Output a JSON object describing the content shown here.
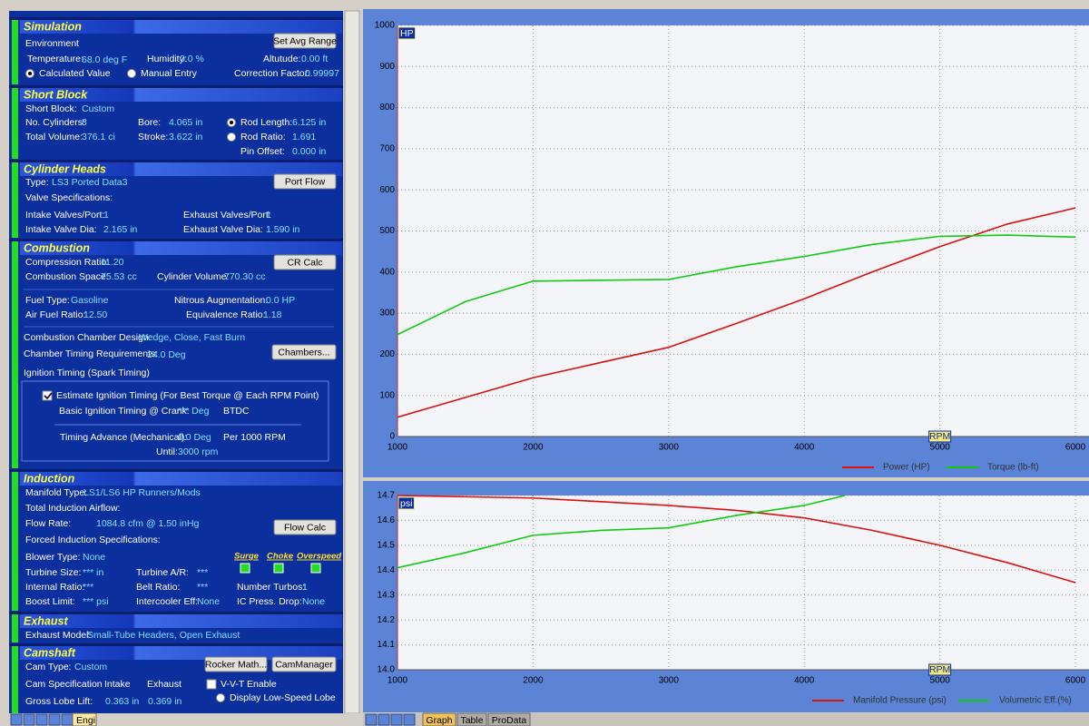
{
  "panel": {
    "sections": [
      {
        "title": "Simulation",
        "items": [
          "Environment",
          "Temperature:",
          "68.0 deg F",
          "Humidity:",
          "0.0 %",
          "Altutude:",
          "0.00 ft",
          "Calculated Value",
          "Manual Entry",
          "Correction Factor:",
          "0.99997",
          "Set Avg Range"
        ]
      },
      {
        "title": "Short Block",
        "items": [
          "Short Block:",
          "Custom",
          "No. Cylinders:",
          "8",
          "Bore:",
          "4.065 in",
          "Rod Length:",
          "6.125 in",
          "Total Volume:",
          "376.1 ci",
          "Stroke:",
          "3.622 in",
          "Rod Ratio:",
          "1.691",
          "Pin Offset:",
          "0.000 in"
        ]
      },
      {
        "title": "Cylinder Heads",
        "items": [
          "Type:",
          "LS3 Ported Data3",
          "Port Flow",
          "Valve Specifications:",
          "Intake Valves/Port:",
          "1",
          "Exhaust Valves/Port:",
          "1",
          "Intake Valve Dia:",
          "2.165 in",
          "Exhaust Valve Dia:",
          "1.590 in"
        ]
      },
      {
        "title": "Combustion",
        "items": [
          "Compression Ratio:",
          "11.20",
          "CR Calc",
          "Combustion Space:",
          "75.53 cc",
          "Cylinder Volume:",
          "770.30 cc",
          "Fuel Type:",
          "Gasoline",
          "Nitrous Augmentation:",
          "0.0 HP",
          "Air Fuel Ratio:",
          "12.50",
          "Equivalence Ratio:",
          "1.18",
          "Combustion Chamber Design:",
          "Wedge, Close, Fast Burn",
          "Chamber Timing Requirements:",
          "24.0 Deg",
          "Chambers...",
          "Ignition Timing (Spark Timing)",
          "Estimate Ignition Timing (For Best Torque @ Each RPM Point)",
          "Basic Ignition Timing @ Crank:",
          "*** Deg",
          "BTDC",
          "Timing Advance (Mechanical):",
          "0.0 Deg",
          "Per 1000 RPM",
          "Until:",
          "3000 rpm"
        ]
      },
      {
        "title": "Induction",
        "items": [
          "Manifold Type:",
          "LS1/LS6 HP Runners/Mods",
          "Total Induction Airflow:",
          "Flow Rate:",
          "1084.8 cfm @ 1.50 inHg",
          "Flow Calc",
          "Forced Induction Specifications:",
          "Blower Type:",
          "None",
          "Surge",
          "Choke",
          "Overspeed",
          "Turbine Size:",
          "*** in",
          "Turbine A/R:",
          "***",
          "Internal Ratio:",
          "***",
          "Belt Ratio:",
          "***",
          "Number Turbos:",
          "1",
          "Boost Limit:",
          "*** psi",
          "Intercooler Eff:",
          "None",
          "IC Press. Drop:",
          "None"
        ]
      },
      {
        "title": "Exhaust",
        "items": [
          "Exhaust Model:",
          "Small-Tube Headers, Open Exhaust"
        ]
      },
      {
        "title": "Camshaft",
        "items": [
          "Cam Type:",
          "Custom",
          "Rocker Math...",
          "CamManager",
          "Cam Specification",
          "Intake",
          "Exhaust",
          "V-V-T Enable",
          "Gross Lobe Lift:",
          "0.363 in",
          "0.369 in",
          "Display Low-Speed Lobe"
        ]
      }
    ]
  },
  "left_tabs": [
    "Engi"
  ],
  "chart_tabs": [
    "Graph",
    "Table",
    "ProData"
  ],
  "chart_data": [
    {
      "type": "line",
      "y_label": "HP",
      "x_label": "RPM",
      "xlim": [
        1000,
        6100
      ],
      "xticks": [
        1000,
        2000,
        3000,
        4000,
        5000,
        6000
      ],
      "ylim": [
        0,
        1000
      ],
      "yticks": [
        0,
        100,
        200,
        300,
        400,
        500,
        600,
        700,
        800,
        900,
        1000
      ],
      "grid": true,
      "series": [
        {
          "name": "Power (HP)",
          "color": "#dd1010",
          "x": [
            1000,
            1500,
            2000,
            2500,
            3000,
            3500,
            4000,
            4500,
            5000,
            5500,
            6000
          ],
          "values": [
            47,
            95,
            143,
            180,
            217,
            275,
            335,
            400,
            462,
            517,
            556
          ]
        },
        {
          "name": "Torque (lb-ft)",
          "color": "#10cc10",
          "x": [
            1000,
            1500,
            2000,
            2500,
            3000,
            3500,
            4000,
            4500,
            5000,
            5500,
            6000
          ],
          "values": [
            248,
            328,
            378,
            380,
            382,
            413,
            438,
            467,
            487,
            490,
            485
          ]
        }
      ]
    },
    {
      "type": "line",
      "y_label": "psi",
      "x_label": "RPM",
      "xlim": [
        1000,
        6100
      ],
      "xticks": [
        1000,
        2000,
        3000,
        4000,
        5000,
        6000
      ],
      "ylim": [
        14,
        14.7
      ],
      "yticks": [
        {
          "value": 14,
          "label": "14.0"
        },
        14.1,
        14.2,
        14.3,
        14.4,
        14.5,
        14.6,
        14.7
      ],
      "grid": true,
      "series": [
        {
          "name": "Manifold Pressure (psi)",
          "color": "#dd1010",
          "x": [
            1000,
            1500,
            2000,
            2500,
            3000,
            3500,
            4000,
            4500,
            5000,
            5500,
            6000
          ],
          "values": [
            14.7,
            14.695,
            14.69,
            14.675,
            14.66,
            14.64,
            14.61,
            14.56,
            14.5,
            14.43,
            14.35
          ]
        },
        {
          "name": "Volumetric Eff.(%)",
          "color": "#10cc10",
          "x": [
            1000,
            1500,
            2000,
            2500,
            3000,
            3500,
            4000,
            4300
          ],
          "values": [
            14.41,
            14.47,
            14.54,
            14.56,
            14.57,
            14.62,
            14.66,
            14.7
          ]
        }
      ]
    }
  ]
}
